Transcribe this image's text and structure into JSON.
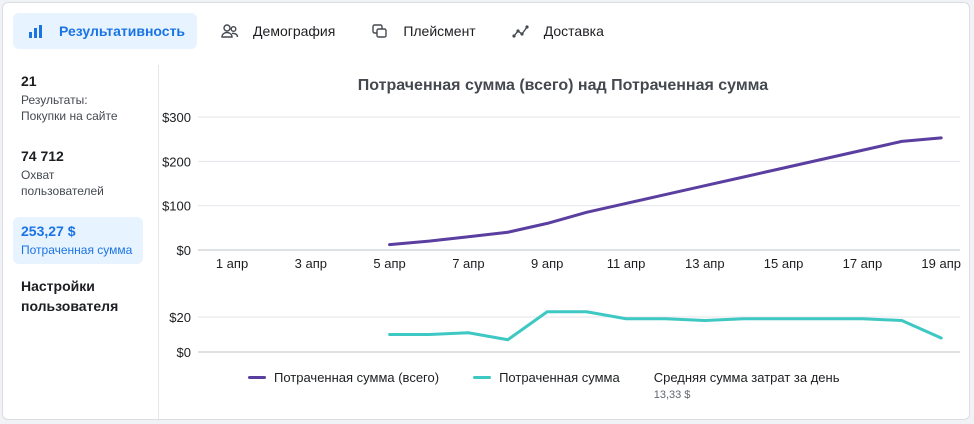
{
  "tabs": [
    {
      "label": "Результативность",
      "icon": "bar-chart-icon",
      "active": true
    },
    {
      "label": "Демография",
      "icon": "people-icon",
      "active": false
    },
    {
      "label": "Плейсмент",
      "icon": "placement-icon",
      "active": false
    },
    {
      "label": "Доставка",
      "icon": "delivery-icon",
      "active": false
    }
  ],
  "sidebar": {
    "stats": [
      {
        "value": "21",
        "label_line1": "Результаты:",
        "label_line2": "Покупки на сайте"
      },
      {
        "value": "74 712",
        "label_line1": "Охват",
        "label_line2": "пользователей"
      },
      {
        "value": "253,27 $",
        "label_line1": "Потраченная сумма",
        "label_line2": ""
      }
    ],
    "settings_line1": "Настройки",
    "settings_line2": "пользователя"
  },
  "chart_title": "Потраченная сумма (всего) над Потраченная сумма",
  "legend": {
    "series1": "Потраченная сумма (всего)",
    "series2": "Потраченная сумма",
    "avg_label": "Средняя сумма затрат за день",
    "avg_value": "13,33 $"
  },
  "colors": {
    "accent": "#1b74e4",
    "series1": "#5b3fa0",
    "series2": "#3ec8c3"
  },
  "chart_data": [
    {
      "type": "line",
      "title": "Потраченная сумма (всего) над Потраченная сумма",
      "x_ticks": [
        "1 апр",
        "3 апр",
        "5 апр",
        "7 апр",
        "9 апр",
        "11 апр",
        "13 апр",
        "15 апр",
        "17 апр",
        "19 апр"
      ],
      "x": [
        "5 апр",
        "6 апр",
        "7 апр",
        "8 апр",
        "9 апр",
        "10 апр",
        "11 апр",
        "12 апр",
        "13 апр",
        "14 апр",
        "15 апр",
        "16 апр",
        "17 апр",
        "18 апр",
        "19 апр"
      ],
      "y_ticks": [
        "$0",
        "$100",
        "$200",
        "$300"
      ],
      "ylim": [
        0,
        300
      ],
      "series": [
        {
          "name": "Потраченная сумма (всего)",
          "values": [
            12,
            20,
            30,
            40,
            60,
            85,
            105,
            125,
            145,
            165,
            185,
            205,
            225,
            245,
            253
          ]
        }
      ]
    },
    {
      "type": "line",
      "x": [
        "5 апр",
        "6 апр",
        "7 апр",
        "8 апр",
        "9 апр",
        "10 апр",
        "11 апр",
        "12 апр",
        "13 апр",
        "14 апр",
        "15 апр",
        "16 апр",
        "17 апр",
        "18 апр",
        "19 апр"
      ],
      "y_ticks": [
        "$0",
        "$20"
      ],
      "ylim": [
        0,
        20
      ],
      "series": [
        {
          "name": "Потраченная сумма",
          "values": [
            10,
            10,
            11,
            7,
            23,
            23,
            19,
            19,
            18,
            19,
            19,
            19,
            19,
            18,
            8
          ]
        }
      ]
    }
  ]
}
